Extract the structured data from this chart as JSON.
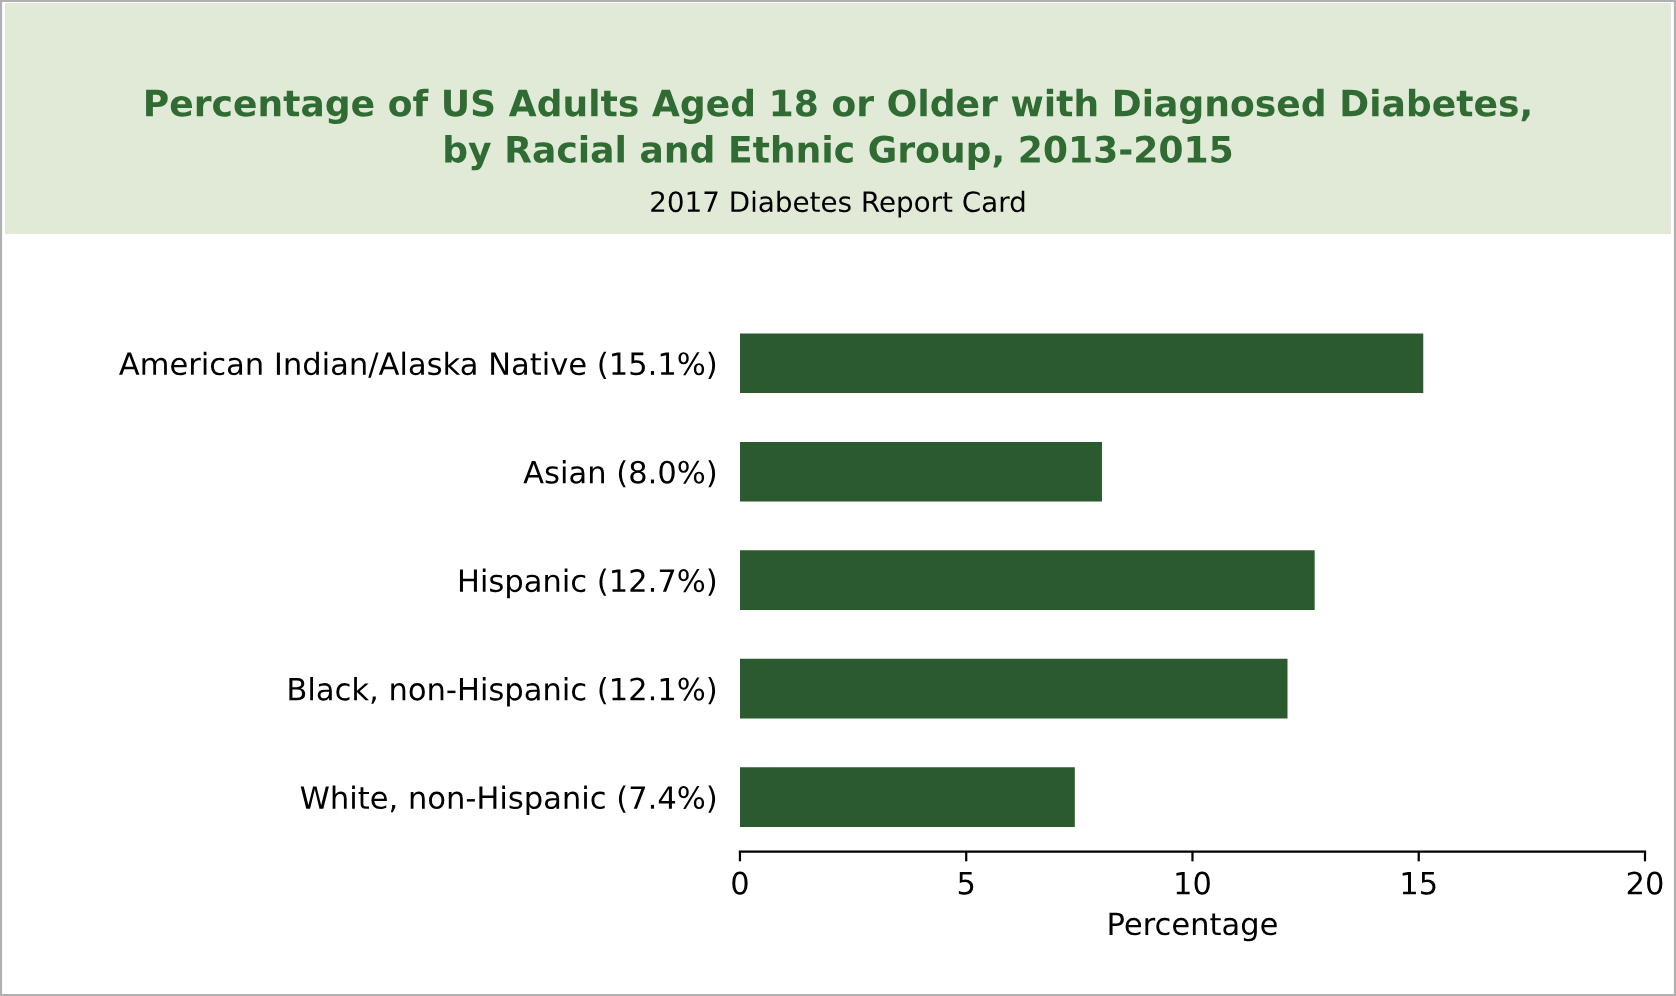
{
  "chart_data": {
    "type": "bar",
    "orientation": "horizontal",
    "title": "Percentage of US Adults Aged 18 or Older with Diagnosed Diabetes,\nby Racial and Ethnic Group, 2013-2015",
    "subtitle": "2017 Diabetes Report Card",
    "xlabel": "Percentage",
    "categories": [
      "American Indian/Alaska Native (15.1%)",
      "Asian (8.0%)",
      "Hispanic (12.7%)",
      "Black, non-Hispanic (12.1%)",
      "White, non-Hispanic (7.4%)"
    ],
    "values": [
      15.1,
      8.0,
      12.7,
      12.1,
      7.4
    ],
    "color": "#2b5a2e",
    "xlim": [
      0,
      20
    ],
    "xticks": [
      0,
      5,
      10,
      15,
      20
    ],
    "grid": false,
    "legend": false
  }
}
